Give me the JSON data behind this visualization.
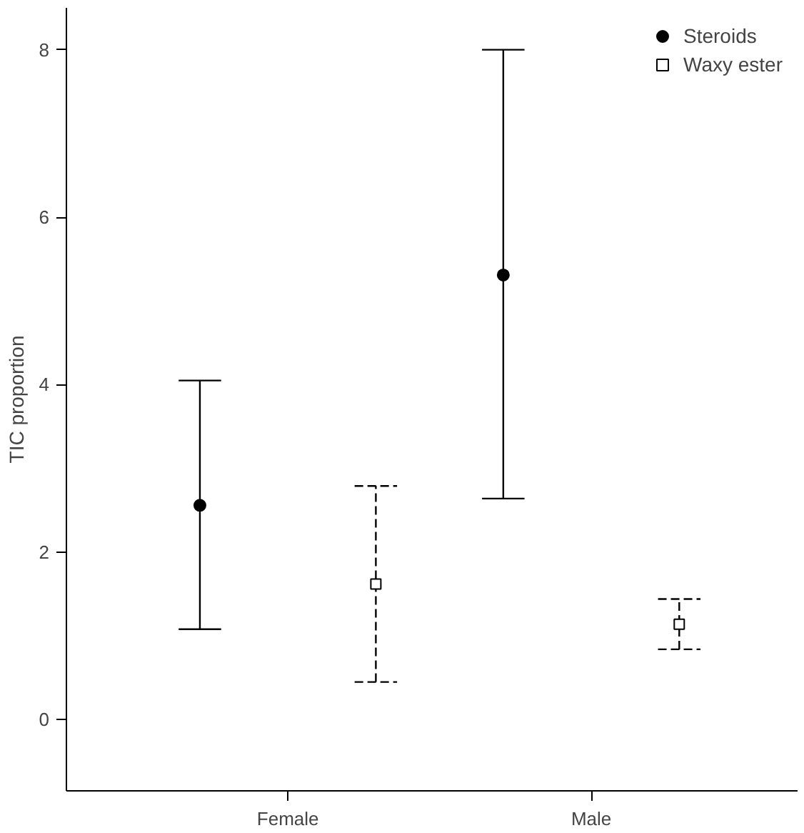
{
  "chart_data": {
    "type": "scatter",
    "ylabel": "TIC proportion",
    "categories": [
      "Female",
      "Male"
    ],
    "series": [
      {
        "name": "Steroids",
        "color": "#000000",
        "marker": "circle",
        "line_style": "solid",
        "values": [
          2.56,
          5.31
        ],
        "errors": [
          [
            1.08,
            4.05
          ],
          [
            2.64,
            8.0
          ]
        ]
      },
      {
        "name": "Waxy ester",
        "color": "#000000",
        "marker": "square",
        "line_style": "dashed",
        "values": [
          1.62,
          1.14
        ],
        "errors": [
          [
            0.45,
            2.79
          ],
          [
            0.84,
            1.44
          ]
        ]
      }
    ],
    "ylim": [
      -0.85,
      8.5
    ],
    "yticks": [
      0,
      2,
      4,
      6,
      8
    ],
    "grid": false,
    "legend": "top right"
  }
}
